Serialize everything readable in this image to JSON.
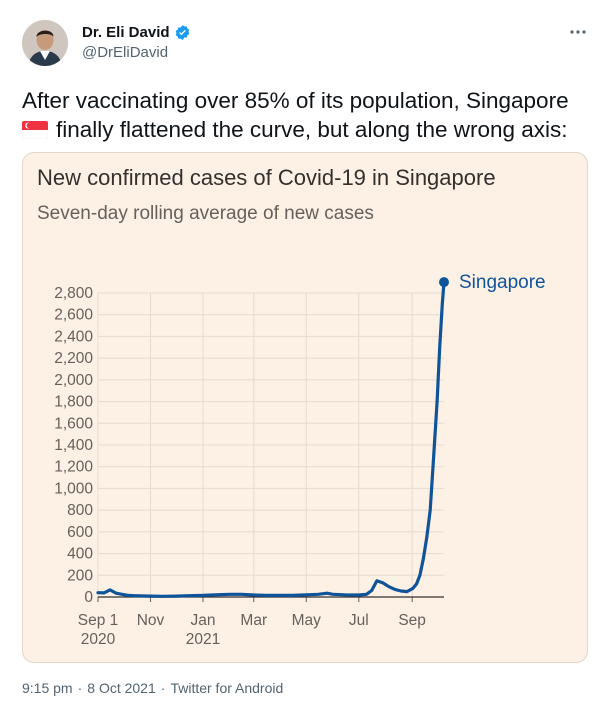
{
  "author": {
    "display_name": "Dr. Eli David",
    "handle": "@DrEliDavid",
    "verified": true,
    "avatar_icon": "avatar-photo"
  },
  "more_icon": "more-options-icon",
  "tweet": {
    "text_part1": "After vaccinating over 85% of its population, Singapore",
    "flag": "singapore-flag-emoji",
    "text_part2": "finally flattened the curve, but along the wrong axis:"
  },
  "footer": {
    "time": "9:15 pm",
    "date": "8 Oct 2021",
    "source": "Twitter for Android"
  },
  "colors": {
    "line": "#0f5499",
    "card_background": "#fdf1e6",
    "gridline": "#e6d9ce"
  },
  "chart_data": {
    "type": "line",
    "title": "New confirmed cases of Covid-19 in Singapore",
    "subtitle": "Seven-day rolling average of new cases",
    "xlabel": "",
    "ylabel": "",
    "ylim": [
      0,
      2800
    ],
    "yticks": [
      0,
      200,
      400,
      600,
      800,
      1000,
      1200,
      1400,
      1600,
      1800,
      2000,
      2200,
      2400,
      2600,
      2800
    ],
    "ytick_labels": [
      "0",
      "200",
      "400",
      "600",
      "800",
      "1,000",
      "1,200",
      "1,400",
      "1,600",
      "1,800",
      "2,000",
      "2,200",
      "2,400",
      "2,600",
      "2,800"
    ],
    "xticks": [
      {
        "date": "2020-09-01",
        "label": "Sep 1",
        "sublabel": "2020"
      },
      {
        "date": "2020-11-01",
        "label": "Nov",
        "sublabel": ""
      },
      {
        "date": "2021-01-01",
        "label": "Jan",
        "sublabel": "2021"
      },
      {
        "date": "2021-03-01",
        "label": "Mar",
        "sublabel": ""
      },
      {
        "date": "2021-05-01",
        "label": "May",
        "sublabel": ""
      },
      {
        "date": "2021-07-01",
        "label": "Jul",
        "sublabel": ""
      },
      {
        "date": "2021-09-01",
        "label": "Sep",
        "sublabel": ""
      }
    ],
    "xlim": [
      "2020-09-01",
      "2021-10-08"
    ],
    "grid": true,
    "series": [
      {
        "name": "Singapore",
        "x": [
          "2020-09-01",
          "2020-09-08",
          "2020-09-15",
          "2020-09-22",
          "2020-09-29",
          "2020-10-06",
          "2020-10-13",
          "2020-10-20",
          "2020-11-01",
          "2020-11-15",
          "2020-12-01",
          "2020-12-15",
          "2021-01-01",
          "2021-01-15",
          "2021-02-01",
          "2021-02-15",
          "2021-03-01",
          "2021-03-15",
          "2021-04-01",
          "2021-04-15",
          "2021-05-01",
          "2021-05-15",
          "2021-05-25",
          "2021-06-01",
          "2021-06-15",
          "2021-07-01",
          "2021-07-10",
          "2021-07-16",
          "2021-07-22",
          "2021-07-29",
          "2021-08-05",
          "2021-08-12",
          "2021-08-19",
          "2021-08-26",
          "2021-09-02",
          "2021-09-06",
          "2021-09-10",
          "2021-09-14",
          "2021-09-18",
          "2021-09-22",
          "2021-09-26",
          "2021-09-30",
          "2021-10-03",
          "2021-10-06",
          "2021-10-08"
        ],
        "values": [
          40,
          38,
          65,
          35,
          25,
          15,
          12,
          10,
          8,
          6,
          8,
          12,
          15,
          20,
          25,
          25,
          18,
          15,
          15,
          15,
          20,
          25,
          35,
          25,
          20,
          18,
          25,
          60,
          150,
          130,
          95,
          70,
          55,
          50,
          80,
          120,
          200,
          350,
          550,
          800,
          1300,
          1800,
          2300,
          2700,
          2900
        ]
      }
    ]
  }
}
